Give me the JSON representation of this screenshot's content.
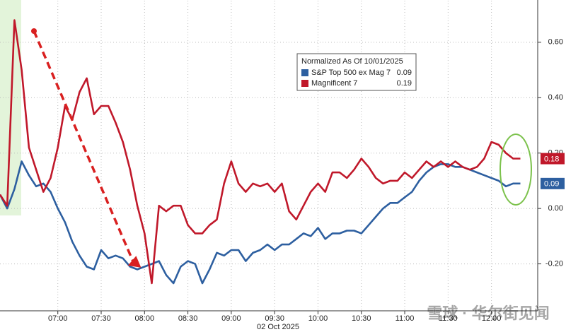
{
  "chart_data": {
    "type": "line",
    "legend_title": "Normalized As Of 10/01/2025",
    "x_label": "02 Oct 2025",
    "watermark": "雪球 · 华尔街见闻",
    "x": [
      "06:20",
      "06:25",
      "06:30",
      "06:35",
      "06:40",
      "06:45",
      "06:50",
      "06:55",
      "07:00",
      "07:05",
      "07:10",
      "07:15",
      "07:20",
      "07:25",
      "07:30",
      "07:35",
      "07:40",
      "07:45",
      "07:50",
      "07:55",
      "08:00",
      "08:05",
      "08:10",
      "08:15",
      "08:20",
      "08:25",
      "08:30",
      "08:35",
      "08:40",
      "08:45",
      "08:50",
      "08:55",
      "09:00",
      "09:05",
      "09:10",
      "09:15",
      "09:20",
      "09:25",
      "09:30",
      "09:35",
      "09:40",
      "09:45",
      "09:50",
      "09:55",
      "10:00",
      "10:05",
      "10:10",
      "10:15",
      "10:20",
      "10:25",
      "10:30",
      "10:35",
      "10:40",
      "10:45",
      "10:50",
      "10:55",
      "11:00",
      "11:05",
      "11:10",
      "11:15",
      "11:20",
      "11:25",
      "11:30",
      "11:35",
      "11:40",
      "11:45",
      "11:50",
      "11:55",
      "12:00",
      "12:05",
      "12:10",
      "12:15",
      "12:20"
    ],
    "series": [
      {
        "name": "S&P Top 500 ex Mag 7",
        "color": "#2d5fa0",
        "legend_value": 0.09,
        "end_value": 0.09,
        "values": [
          0.05,
          0.0,
          0.07,
          0.17,
          0.12,
          0.08,
          0.09,
          0.06,
          0.0,
          -0.05,
          -0.12,
          -0.17,
          -0.21,
          -0.22,
          -0.15,
          -0.18,
          -0.17,
          -0.18,
          -0.21,
          -0.22,
          -0.21,
          -0.2,
          -0.19,
          -0.24,
          -0.27,
          -0.21,
          -0.19,
          -0.2,
          -0.27,
          -0.22,
          -0.16,
          -0.17,
          -0.15,
          -0.15,
          -0.19,
          -0.16,
          -0.15,
          -0.13,
          -0.15,
          -0.13,
          -0.13,
          -0.11,
          -0.09,
          -0.1,
          -0.07,
          -0.11,
          -0.09,
          -0.09,
          -0.08,
          -0.08,
          -0.09,
          -0.06,
          -0.03,
          0.0,
          0.02,
          0.02,
          0.04,
          0.06,
          0.1,
          0.13,
          0.15,
          0.16,
          0.16,
          0.15,
          0.15,
          0.14,
          0.13,
          0.12,
          0.11,
          0.1,
          0.08,
          0.09,
          0.09
        ]
      },
      {
        "name": "Magnificent 7",
        "color": "#c0182a",
        "legend_value": 0.19,
        "end_value": 0.18,
        "values": [
          0.05,
          0.01,
          0.68,
          0.5,
          0.22,
          0.14,
          0.06,
          0.11,
          0.22,
          0.37,
          0.32,
          0.42,
          0.47,
          0.34,
          0.37,
          0.37,
          0.31,
          0.24,
          0.14,
          0.01,
          -0.09,
          -0.27,
          0.01,
          -0.01,
          0.01,
          0.01,
          -0.06,
          -0.09,
          -0.09,
          -0.06,
          -0.04,
          0.09,
          0.17,
          0.09,
          0.06,
          0.09,
          0.08,
          0.09,
          0.06,
          0.09,
          -0.01,
          -0.04,
          0.01,
          0.06,
          0.09,
          0.06,
          0.13,
          0.13,
          0.11,
          0.14,
          0.18,
          0.15,
          0.11,
          0.09,
          0.1,
          0.1,
          0.13,
          0.11,
          0.14,
          0.17,
          0.15,
          0.17,
          0.15,
          0.17,
          0.15,
          0.14,
          0.15,
          0.18,
          0.24,
          0.23,
          0.2,
          0.18,
          0.18
        ]
      }
    ],
    "xlim": [
      "06:20",
      "12:32"
    ],
    "xticks": [
      "07:00",
      "07:30",
      "08:00",
      "08:30",
      "09:00",
      "09:30",
      "10:00",
      "10:30",
      "11:00",
      "11:30",
      "12:00"
    ],
    "ylim": [
      -0.4,
      0.75
    ],
    "yticks": [
      {
        "value": -0.2,
        "label": "-0.20"
      },
      {
        "value": 0,
        "label": "0.00"
      },
      {
        "value": 0.2,
        "label": "0.20"
      },
      {
        "value": 0.4,
        "label": "0.40"
      },
      {
        "value": 0.6,
        "label": "0.60"
      }
    ],
    "grid": true
  }
}
